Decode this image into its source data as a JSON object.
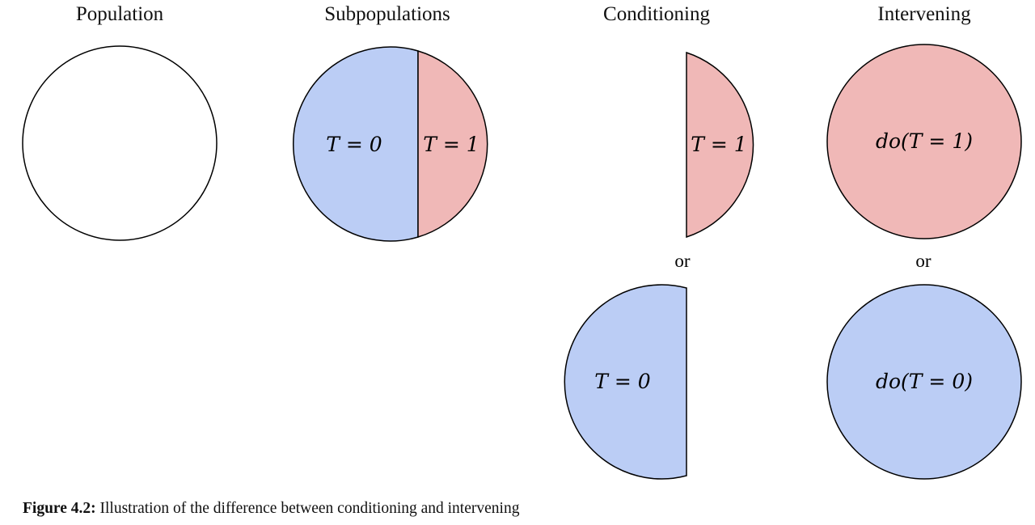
{
  "colors": {
    "treated_fill": "#f0b8b7",
    "control_fill": "#bbcdf5",
    "empty_fill": "#ffffff",
    "stroke": "#000000"
  },
  "headings": {
    "population": "Population",
    "subpopulations": "Subpopulations",
    "conditioning": "Conditioning",
    "intervening": "Intervening"
  },
  "subpopulations": {
    "control_label": "T = 0",
    "treated_label": "T = 1"
  },
  "conditioning": {
    "treated_label": "T = 1",
    "separator": "or",
    "control_label": "T = 0"
  },
  "intervening": {
    "treated_label": "do(T = 1)",
    "separator": "or",
    "control_label": "do(T = 0)"
  },
  "caption": {
    "label": "Figure 4.2:",
    "text": " Illustration of the difference between conditioning and intervening"
  }
}
